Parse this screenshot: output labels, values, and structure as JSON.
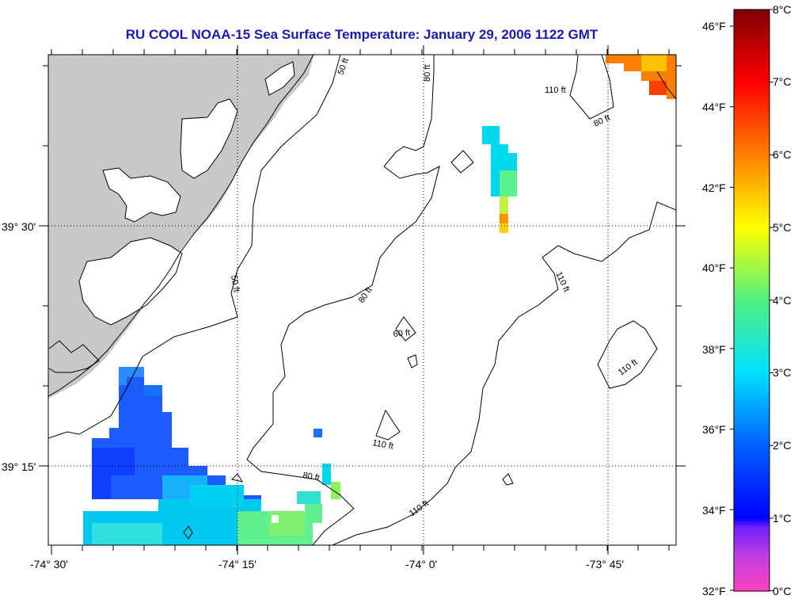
{
  "title": "RU COOL  NOAA-15  Sea Surface Temperature:  January 29, 2006 1122 GMT",
  "map": {
    "lon_ticks": [
      "-74° 30'",
      "-74° 15'",
      "-74° 0'",
      "-73° 45'"
    ],
    "lat_ticks": [
      "39° 30'",
      "39° 15'"
    ],
    "contour_labels": [
      "50 ft",
      "50 ft",
      "80 ft",
      "80 ft",
      "80 ft",
      "80 ft",
      "60 ft",
      "110 ft",
      "110 ft",
      "110 ft",
      "110 ft",
      "110 ft"
    ]
  },
  "colorbar": {
    "fahrenheit_labels": [
      "46°F",
      "44°F",
      "42°F",
      "40°F",
      "38°F",
      "36°F",
      "34°F",
      "32°F"
    ],
    "celsius_labels": [
      "8°C",
      "7°C",
      "6°C",
      "5°C",
      "4°C",
      "3°C",
      "2°C",
      "1°C",
      "0°C"
    ]
  },
  "colors": {
    "land": "#c8c8c8",
    "title": "#1a1ab0"
  }
}
